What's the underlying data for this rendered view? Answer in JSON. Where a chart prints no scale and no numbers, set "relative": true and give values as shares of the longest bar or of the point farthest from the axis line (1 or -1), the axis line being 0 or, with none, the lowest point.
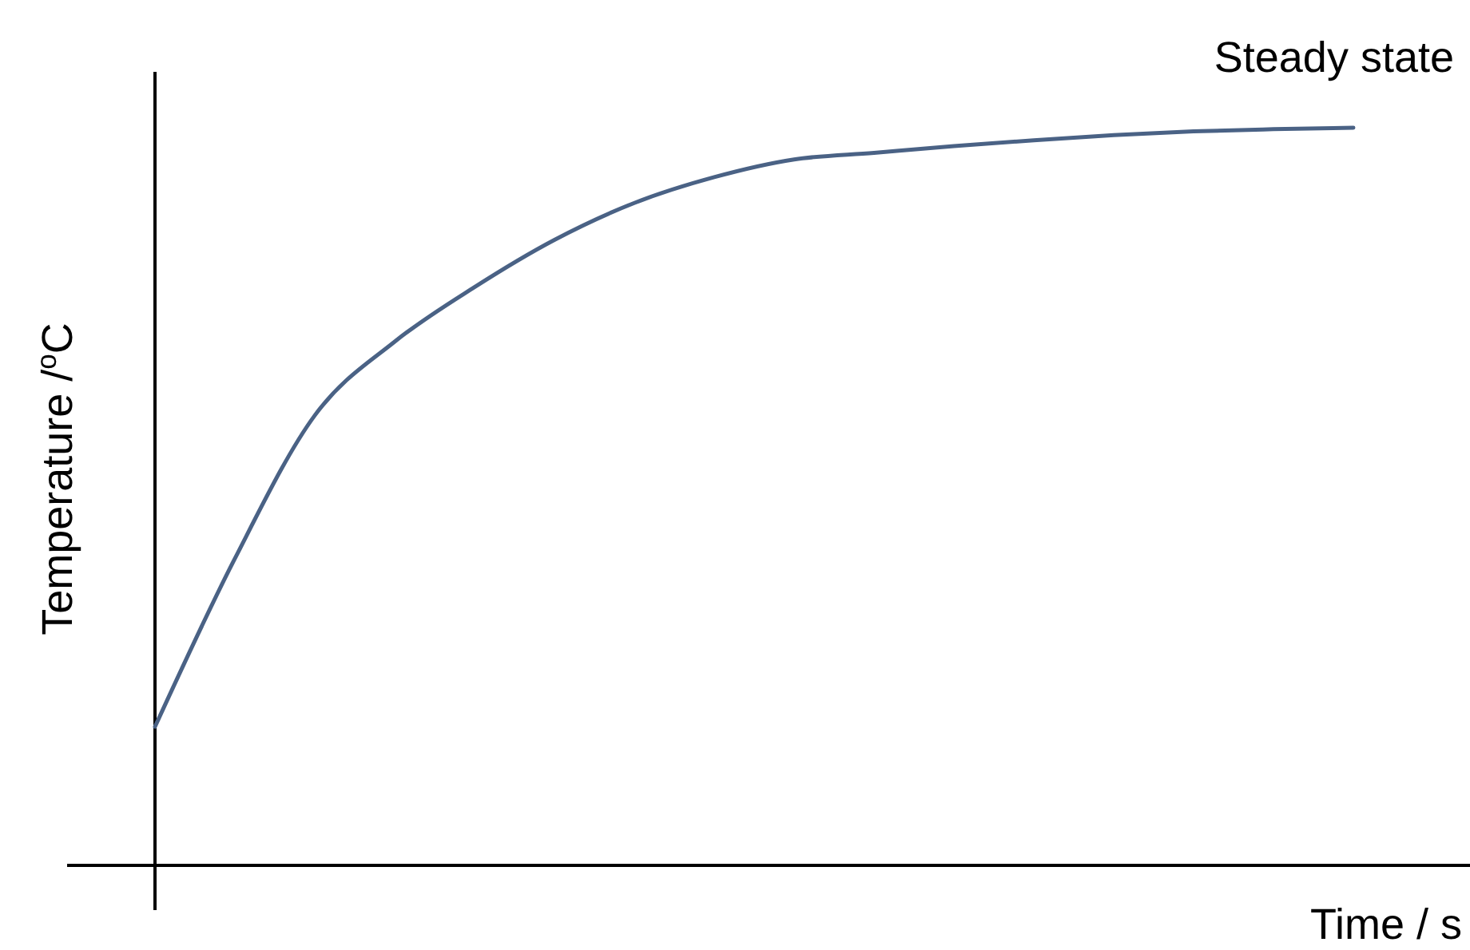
{
  "chart_data": {
    "type": "line",
    "relative": true,
    "xlabel": "Time / s",
    "ylabel": "Temperature /$^{o}$C",
    "annotations": [
      "Steady state"
    ],
    "categories": [
      null,
      null,
      null,
      null,
      null,
      null,
      null,
      null,
      null,
      null,
      null,
      null,
      null,
      null,
      null,
      null
    ],
    "series": [
      {
        "color": "#4a6285",
        "values": [
          0.188,
          0.416,
          0.61,
          0.71,
          0.784,
          0.848,
          0.898,
          0.933,
          0.957,
          0.966,
          0.975,
          0.983,
          0.99,
          0.995,
          0.998,
          1
        ]
      }
    ],
    "marker": "none",
    "line_style": "solid"
  }
}
